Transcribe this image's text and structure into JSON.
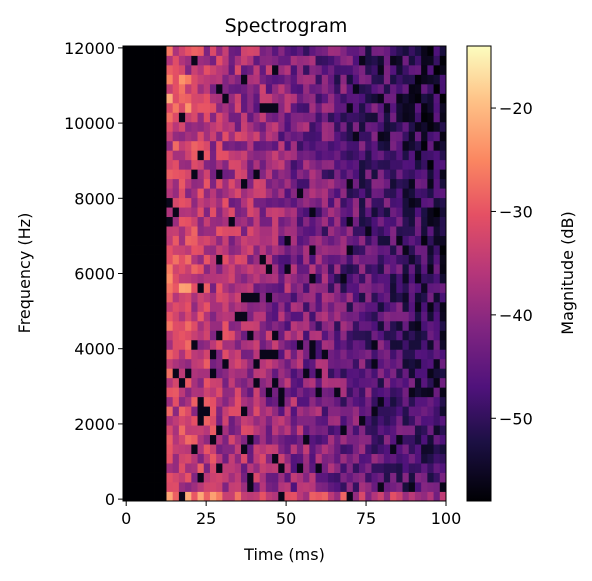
{
  "chart_data": {
    "type": "heatmap",
    "title": "Spectrogram",
    "xlabel": "Time (ms)",
    "ylabel": "Frequency (Hz)",
    "colorbar_label": "Magnitude (dB)",
    "colormap": "magma",
    "xlim": [
      -1,
      100
    ],
    "ylim": [
      -50,
      12050
    ],
    "x_ticks": [
      0,
      25,
      50,
      75,
      100
    ],
    "y_ticks": [
      0,
      2000,
      4000,
      6000,
      8000,
      10000,
      12000
    ],
    "color_range": [
      -58,
      -14
    ],
    "colorbar_ticks": [
      -20,
      -30,
      -40,
      -50
    ],
    "colorbar_tick_labels": [
      "−20",
      "−30",
      "−40",
      "−50"
    ],
    "signal_onset_ms": 12.5,
    "silence_level_db": -58,
    "grid": false
  }
}
